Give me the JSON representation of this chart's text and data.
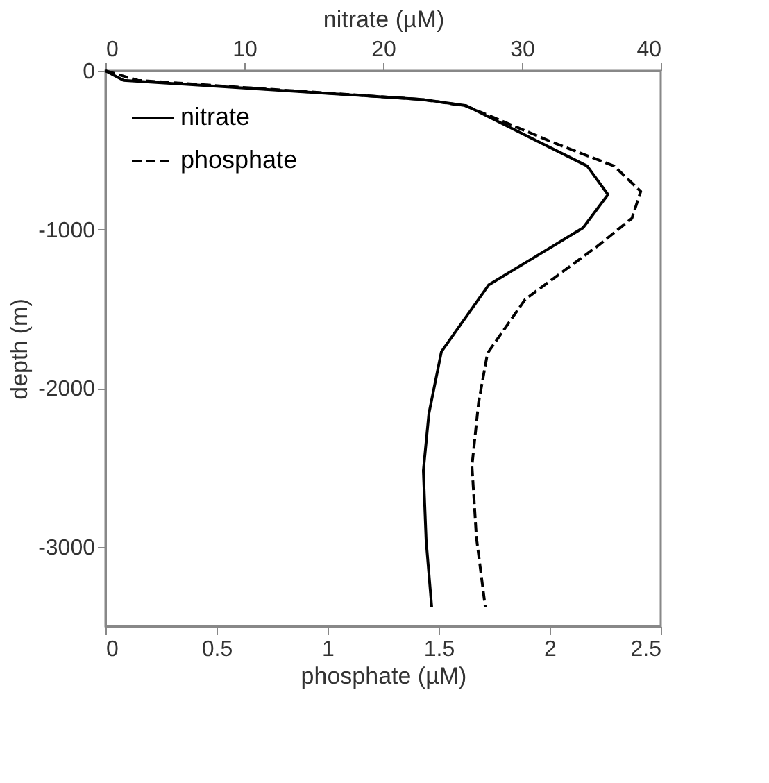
{
  "chart_data": {
    "type": "line",
    "xlabel": "phosphate (µM)",
    "x2label": "nitrate (µM)",
    "ylabel": "depth (m)",
    "xlim": [
      0,
      2.5
    ],
    "xticks": [
      0,
      0.5,
      1,
      1.5,
      2,
      2.5
    ],
    "x2lim": [
      0,
      40
    ],
    "x2ticks": [
      0,
      10,
      20,
      30,
      40
    ],
    "ylim": [
      -3500,
      0
    ],
    "yticks": [
      0,
      -1000,
      -2000,
      -3000
    ],
    "grid": false,
    "legend": "top left",
    "marker": "none",
    "series": [
      {
        "name": "nitrate",
        "color": "#000000",
        "axis": "x2",
        "line_style": "solid",
        "x": [
          0,
          1.3,
          22.8,
          26,
          34.7,
          36.2,
          34.4,
          27.6,
          24.2,
          23.3,
          22.9,
          23.1,
          23.5
        ],
        "values": [
          0,
          -60,
          -180,
          -220,
          -600,
          -780,
          -990,
          -1350,
          -1770,
          -2160,
          -2520,
          -2960,
          -3380
        ]
      },
      {
        "name": "phosphate",
        "color": "#000000",
        "line_style": "dashed",
        "x": [
          0,
          0.146,
          1.42,
          1.62,
          2.03,
          2.29,
          2.41,
          2.37,
          2.22,
          1.89,
          1.72,
          1.68,
          1.65,
          1.67,
          1.71
        ],
        "values": [
          0,
          -60,
          -180,
          -220,
          -460,
          -600,
          -760,
          -930,
          -1100,
          -1440,
          -1780,
          -2090,
          -2490,
          -2940,
          -3380
        ]
      }
    ]
  }
}
